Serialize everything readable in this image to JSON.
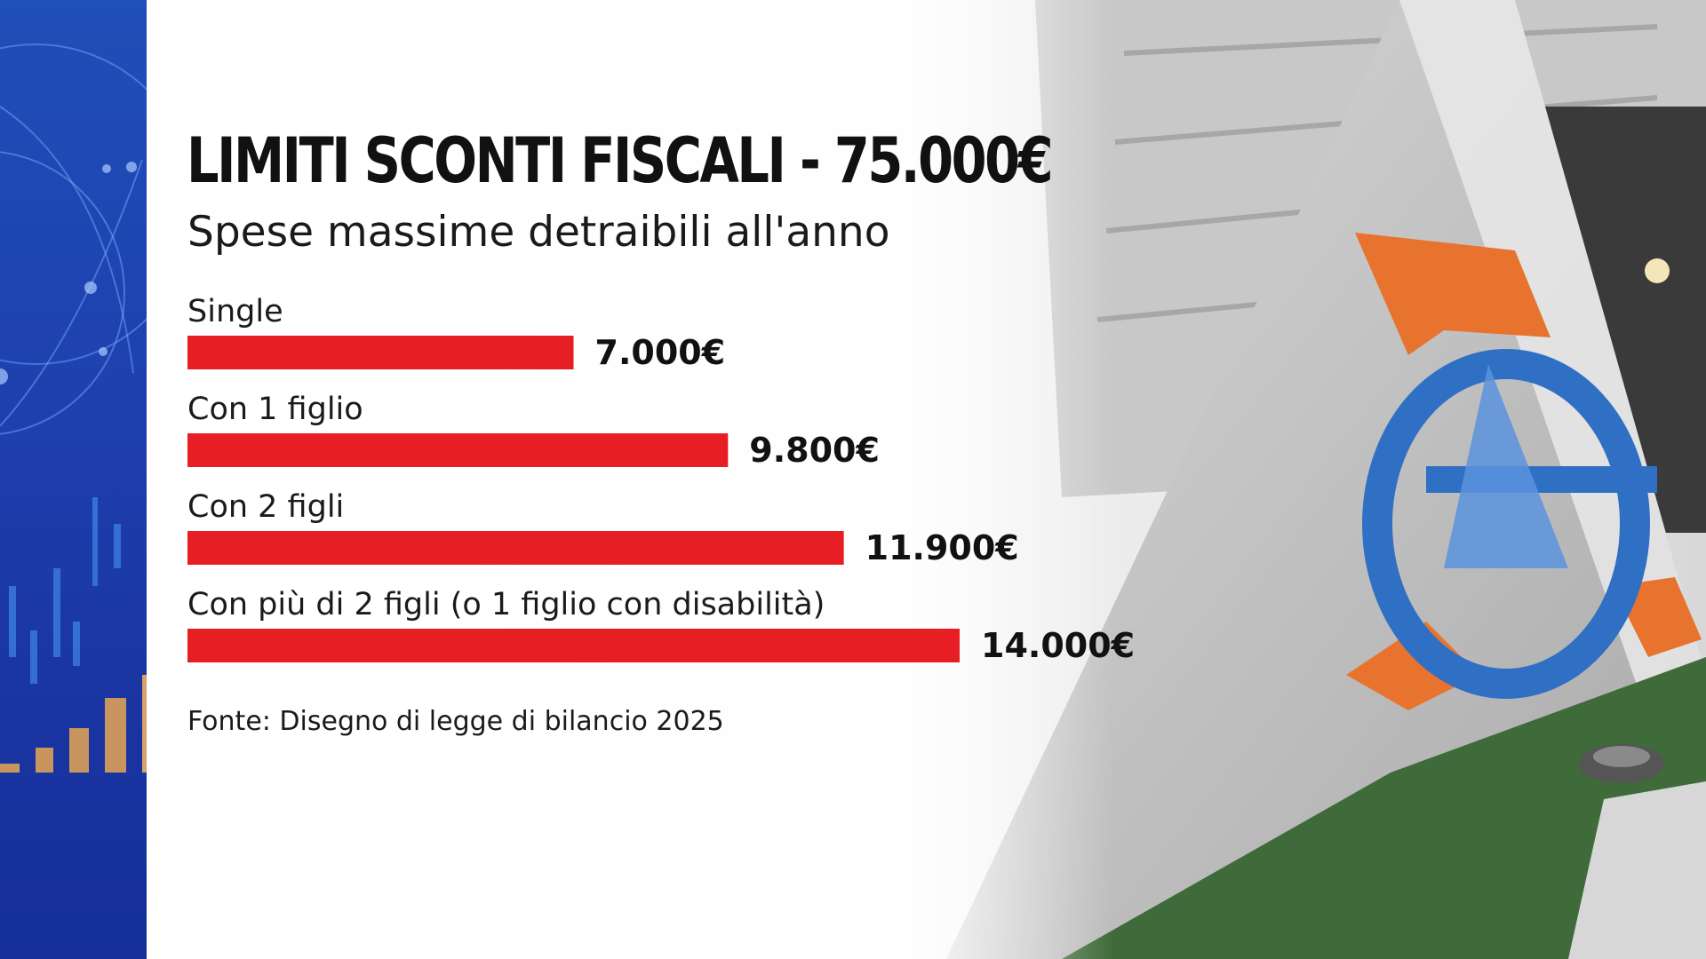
{
  "title": "LIMITI SCONTI FISCALI - 75.000€",
  "subtitle": "Spese massime detraibili all'anno",
  "source": "Fonte: Disegno di legge di bilancio 2025",
  "colors": {
    "bar": "#e81e25",
    "left_panel": "#1e40af",
    "logo_orange": "#e8732e",
    "logo_blue": "#2f6fc4"
  },
  "chart_data": {
    "type": "bar",
    "orientation": "horizontal",
    "categories": [
      "Single",
      "Con 1 figlio",
      "Con 2 figli",
      "Con più di 2 figli (o 1 figlio con disabilità)"
    ],
    "values": [
      7000,
      9800,
      11900,
      14000
    ],
    "value_labels": [
      "7.000€",
      "9.800€",
      "11.900€",
      "14.000€"
    ],
    "xlim": [
      0,
      14000
    ],
    "grid": false
  }
}
